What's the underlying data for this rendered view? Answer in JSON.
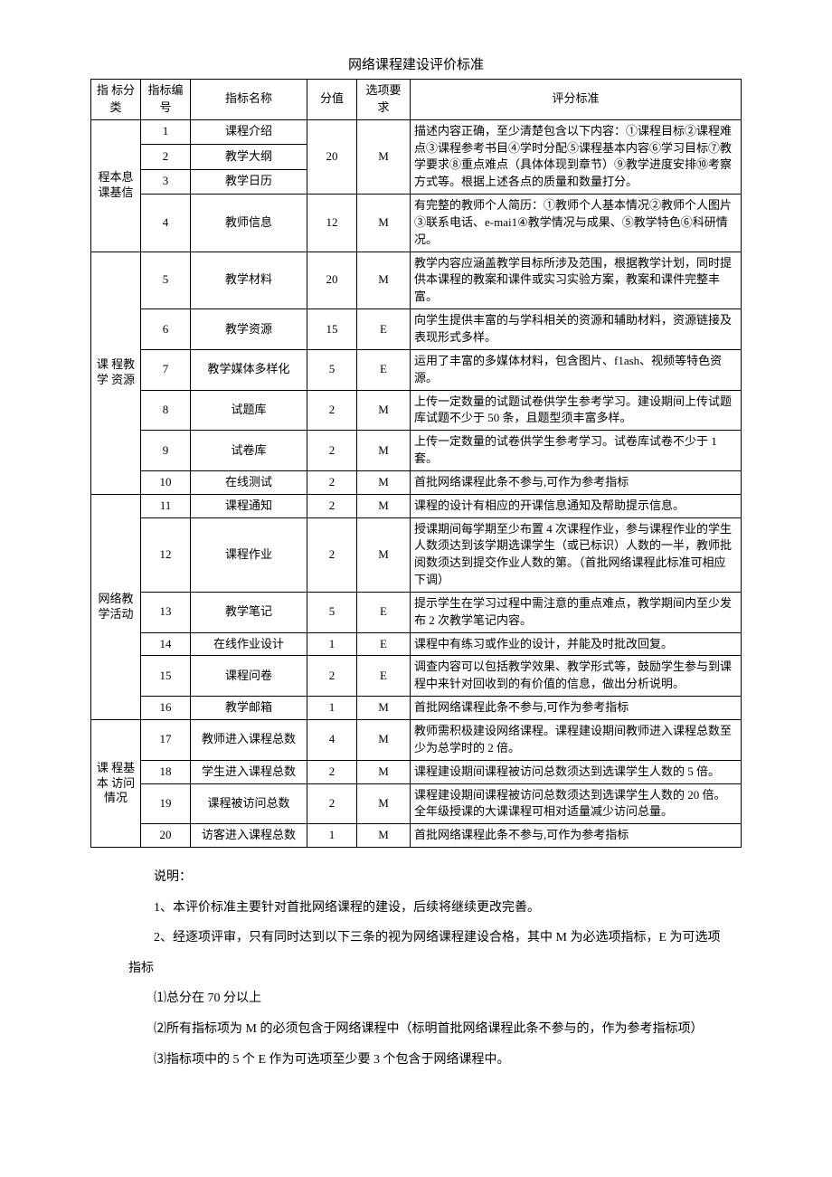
{
  "title": "网络课程建设评价标准",
  "headers": {
    "category": "指 标分类",
    "num": "指标编号",
    "name": "指标名称",
    "score": "分值",
    "option": "选项要求",
    "criteria": "评分标准"
  },
  "cat": {
    "c1": "程本息课基信",
    "c2": "课 程教 学 资源",
    "c3": "网络教学活动",
    "c4": "课 程基 本 访问情况"
  },
  "rows": [
    {
      "n": "1",
      "name": "课程介绍",
      "score": "",
      "opt": "",
      "crit": ""
    },
    {
      "n": "2",
      "name": "教学大纲",
      "score": "20",
      "opt": "M",
      "crit": "描述内容正确，至少清楚包含以下内容：①课程目标②课程难点③课程参考书目④学时分配⑤课程基本内容⑥学习目标⑦教学要求⑧重点难点（具体体现到章节）⑨教学进度安排⑩考察方式等。根据上述各点的质量和数量打分。"
    },
    {
      "n": "3",
      "name": "教学日历",
      "score": "",
      "opt": "",
      "crit": ""
    },
    {
      "n": "4",
      "name": "教师信息",
      "score": "12",
      "opt": "M",
      "crit": "有完整的教师个人简历：①教师个人基本情况②教师个人图片③联系电话、e-mai1④教学情况与成果、⑤教学特色⑥科研情况。"
    },
    {
      "n": "5",
      "name": "教学材料",
      "score": "20",
      "opt": "M",
      "crit": "教学内容应涵盖教学目标所涉及范围，根据教学计划，同时提供本课程的教案和课件或实习实验方案，教案和课件完整丰富。"
    },
    {
      "n": "6",
      "name": "教学资源",
      "score": "15",
      "opt": "E",
      "crit": "向学生提供丰富的与学科相关的资源和辅助材料，资源链接及表现形式多样。"
    },
    {
      "n": "7",
      "name": "教学媒体多样化",
      "score": "5",
      "opt": "E",
      "crit": "运用了丰富的多媒体材料，包含图片、f1ash、视频等特色资源。"
    },
    {
      "n": "8",
      "name": "试题库",
      "score": "2",
      "opt": "M",
      "crit": "上传一定数量的试题试卷供学生参考学习。建设期间上传试题库试题不少于 50 条，且题型须丰富多样。"
    },
    {
      "n": "9",
      "name": "试卷库",
      "score": "2",
      "opt": "M",
      "crit": "上传一定数量的试卷供学生参考学习。试卷库试卷不少于 1 套。"
    },
    {
      "n": "10",
      "name": "在线测试",
      "score": "2",
      "opt": "M",
      "crit": "首批网络课程此条不参与,可作为参考指标"
    },
    {
      "n": "11",
      "name": "课程通知",
      "score": "2",
      "opt": "M",
      "crit": "课程的设计有相应的开课信息通知及帮助提示信息。"
    },
    {
      "n": "12",
      "name": "课程作业",
      "score": "2",
      "opt": "M",
      "crit": "授课期间每学期至少布置 4 次课程作业，参与课程作业的学生人数须达到该学期选课学生（或已标识）人数的一半，教师批阅数须达到提交作业人数的第。（首批网络课程此标准可相应下调）"
    },
    {
      "n": "13",
      "name": "教学笔记",
      "score": "5",
      "opt": "E",
      "crit": "提示学生在学习过程中需注意的重点难点，教学期间内至少发布 2 次教学笔记内容。"
    },
    {
      "n": "14",
      "name": "在线作业设计",
      "score": "1",
      "opt": "E",
      "crit": "课程中有练习或作业的设计，并能及时批改回复。"
    },
    {
      "n": "15",
      "name": "课程问卷",
      "score": "2",
      "opt": "E",
      "crit": "调查内容可以包括教学效果、教学形式等，鼓励学生参与到课程中来针对回收到的有价值的信息，做出分析说明。"
    },
    {
      "n": "16",
      "name": "教学邮箱",
      "score": "1",
      "opt": "M",
      "crit": "首批网络课程此条不参与,可作为参考指标"
    },
    {
      "n": "17",
      "name": "教师进入课程总数",
      "score": "4",
      "opt": "M",
      "crit": "教师需积极建设网络课程。课程建设期间教师进入课程总数至少为总学时的 2 倍。"
    },
    {
      "n": "18",
      "name": "学生进入课程总数",
      "score": "2",
      "opt": "M",
      "crit": "课程建设期间课程被访问总数须达到选课学生人数的 5 倍。"
    },
    {
      "n": "19",
      "name": "课程被访问总数",
      "score": "2",
      "opt": "M",
      "crit": "课程建设期间课程被访问总数须达到选课学生人数的 20 倍。全年级授课的大课课程可相对适量减少访问总量。"
    },
    {
      "n": "20",
      "name": "访客进入课程总数",
      "score": "1",
      "opt": "M",
      "crit": "首批网络课程此条不参与,可作为参考指标"
    }
  ],
  "notes": {
    "label": "说明：",
    "n1": "1、本评价标准主要针对首批网络课程的建设，后续将继续更改完善。",
    "n2": "2、经逐项评审，只有同时达到以下三条的视为网络课程建设合格，其中 M 为必选项指标，E 为可选项",
    "n2b": "指标",
    "s1": "⑴总分在 70 分以上",
    "s2": "⑵所有指标项为 M 的必须包含于网络课程中（标明首批网络课程此条不参与的，作为参考指标项）",
    "s3": "⑶指标项中的 5 个 E 作为可选项至少要 3 个包含于网络课程中。"
  }
}
